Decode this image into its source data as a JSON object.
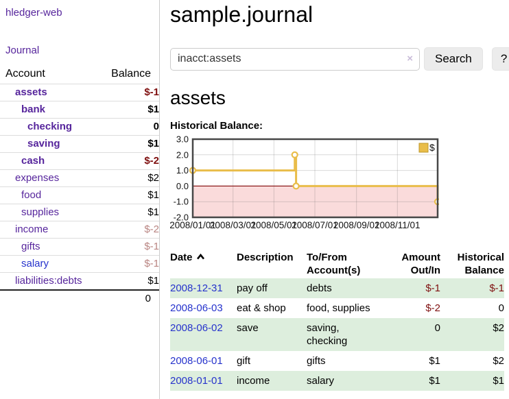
{
  "app": {
    "title": "hledger-web"
  },
  "sidebar": {
    "journal_link": "Journal",
    "accounts_table": {
      "headers": {
        "account": "Account",
        "balance": "Balance"
      },
      "rows": [
        {
          "account": "assets",
          "balance": "$-1",
          "level": 1,
          "bold": true,
          "link": "purple",
          "amount": "negstrong"
        },
        {
          "account": "bank",
          "balance": "$1",
          "level": 2,
          "bold": true,
          "link": "purple",
          "amount": "pos"
        },
        {
          "account": "checking",
          "balance": "0",
          "level": 3,
          "bold": true,
          "link": "purple",
          "amount": "pos"
        },
        {
          "account": "saving",
          "balance": "$1",
          "level": 3,
          "bold": true,
          "link": "purple",
          "amount": "pos"
        },
        {
          "account": "cash",
          "balance": "$-2",
          "level": 2,
          "bold": true,
          "link": "purple",
          "amount": "negstrong"
        },
        {
          "account": "expenses",
          "balance": "$2",
          "level": 1,
          "bold": false,
          "link": "purple",
          "amount": "pos"
        },
        {
          "account": "food",
          "balance": "$1",
          "level": 2,
          "bold": false,
          "link": "purple",
          "amount": "pos"
        },
        {
          "account": "supplies",
          "balance": "$1",
          "level": 2,
          "bold": false,
          "link": "purple",
          "amount": "pos"
        },
        {
          "account": "income",
          "balance": "$-2",
          "level": 1,
          "bold": false,
          "link": "purple",
          "amount": "negmuted"
        },
        {
          "account": "gifts",
          "balance": "$-1",
          "level": 2,
          "bold": false,
          "link": "purple",
          "amount": "negmuted"
        },
        {
          "account": "salary",
          "balance": "$-1",
          "level": 2,
          "bold": false,
          "link": "blue",
          "amount": "negmuted"
        },
        {
          "account": "liabilities:debts",
          "balance": "$1",
          "level": 1,
          "bold": false,
          "link": "purple",
          "amount": "pos"
        }
      ],
      "total": "0"
    }
  },
  "main": {
    "title": "sample.journal",
    "search": {
      "value": "inacct:assets",
      "clear_icon": "×",
      "button_label": "Search",
      "help_label": "?"
    },
    "account_heading": "assets",
    "chart_label": "Historical Balance:",
    "register_table": {
      "headers": {
        "date": "Date",
        "description": "Description",
        "tofrom_line1": "To/From",
        "tofrom_line2": "Account(s)",
        "amount_line1": "Amount",
        "amount_line2": "Out/In",
        "balance_line1": "Historical",
        "balance_line2": "Balance"
      },
      "rows": [
        {
          "date": "2008-12-31",
          "description": "pay off",
          "accounts": "debts",
          "amount": "$-1",
          "amount_neg": true,
          "balance": "$-1",
          "balance_neg": true
        },
        {
          "date": "2008-06-03",
          "description": "eat & shop",
          "accounts": "food, supplies",
          "amount": "$-2",
          "amount_neg": true,
          "balance": "0",
          "balance_neg": false
        },
        {
          "date": "2008-06-02",
          "description": "save",
          "accounts": "saving, checking",
          "amount": "0",
          "amount_neg": false,
          "balance": "$2",
          "balance_neg": false
        },
        {
          "date": "2008-06-01",
          "description": "gift",
          "accounts": "gifts",
          "amount": "$1",
          "amount_neg": false,
          "balance": "$2",
          "balance_neg": false
        },
        {
          "date": "2008-01-01",
          "description": "income",
          "accounts": "salary",
          "amount": "$1",
          "amount_neg": false,
          "balance": "$1",
          "balance_neg": false
        }
      ]
    }
  },
  "chart_data": {
    "type": "line",
    "step": true,
    "title": "Historical Balance",
    "xlim": [
      "2008-01-01",
      "2008-12-31"
    ],
    "ylim": [
      -2,
      3
    ],
    "x_ticks": [
      "2008/01/01",
      "2008/03/01",
      "2008/05/01",
      "2008/07/01",
      "2008/09/01",
      "2008/11/01"
    ],
    "y_ticks": [
      "3.0",
      "2.0",
      "1.0",
      "0.0",
      "-1.0",
      "-2.0"
    ],
    "legend": "$",
    "legend_position": "top-right",
    "grid": true,
    "series": [
      {
        "name": "$",
        "color": "#e9bd4a",
        "points": [
          [
            "2008-01-01",
            1
          ],
          [
            "2008-06-01",
            2
          ],
          [
            "2008-06-03",
            0
          ],
          [
            "2008-12-31",
            -1
          ]
        ]
      }
    ],
    "negative_region_color": "#fadbdb",
    "zero_line_color": "#8b1a1a"
  },
  "colors": {
    "link_purple": "#56259c",
    "link_blue": "#2633cc",
    "negative_strong": "#7f1010",
    "negative_muted": "#b98582",
    "row_stripe_green": "#ddeedd",
    "chart_line_gold": "#e9bd4a",
    "legend_swatch_border": "#bd972b",
    "chart_border": "#474747"
  }
}
